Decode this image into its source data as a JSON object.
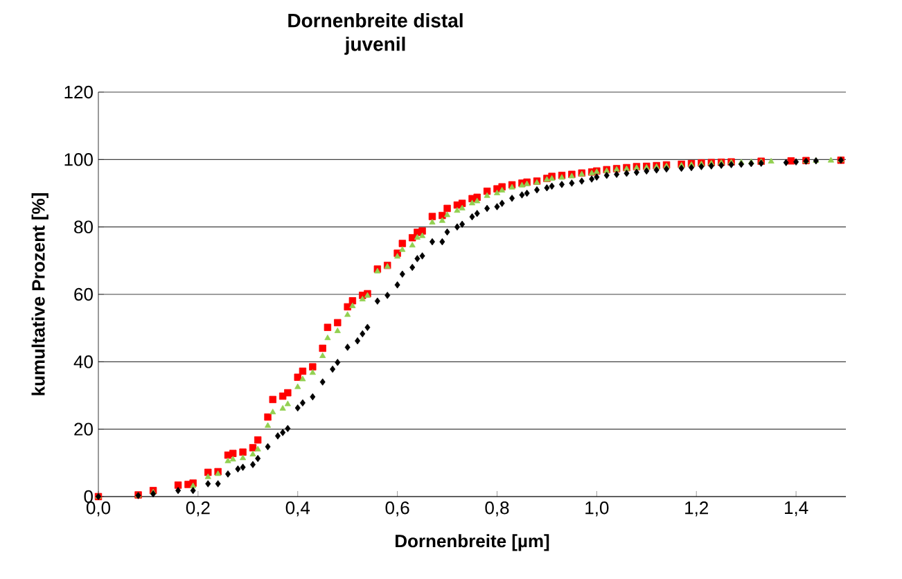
{
  "chart_data": {
    "type": "scatter",
    "title": "Dornenbreite distal",
    "subtitle": "juvenil",
    "xlabel": "Dornenbreite [µm]",
    "ylabel": "kumultative Prozent [%]",
    "xlim": [
      0,
      1.5
    ],
    "ylim": [
      0,
      120
    ],
    "xticks": [
      {
        "value": 0,
        "label": "0,0"
      },
      {
        "value": 0.2,
        "label": "0,2"
      },
      {
        "value": 0.4,
        "label": "0,4"
      },
      {
        "value": 0.6,
        "label": "0,6"
      },
      {
        "value": 0.8,
        "label": "0,8"
      },
      {
        "value": 1.0,
        "label": "1,0"
      },
      {
        "value": 1.2,
        "label": "1,2"
      },
      {
        "value": 1.4,
        "label": "1,4"
      }
    ],
    "yticks": [
      0,
      20,
      40,
      60,
      80,
      100,
      120
    ],
    "grid": "y",
    "series": [
      {
        "color": "#ff0000",
        "marker": "square",
        "x": [
          0,
          0.08,
          0.11,
          0.16,
          0.18,
          0.19,
          0.22,
          0.24,
          0.26,
          0.27,
          0.29,
          0.31,
          0.32,
          0.34,
          0.35,
          0.37,
          0.38,
          0.4,
          0.41,
          0.43,
          0.45,
          0.46,
          0.48,
          0.5,
          0.51,
          0.53,
          0.54,
          0.56,
          0.58,
          0.6,
          0.61,
          0.63,
          0.64,
          0.65,
          0.67,
          0.69,
          0.7,
          0.72,
          0.73,
          0.75,
          0.76,
          0.78,
          0.8,
          0.81,
          0.83,
          0.85,
          0.86,
          0.88,
          0.9,
          0.91,
          0.93,
          0.95,
          0.97,
          0.99,
          1.0,
          1.02,
          1.04,
          1.06,
          1.08,
          1.1,
          1.12,
          1.14,
          1.17,
          1.19,
          1.21,
          1.23,
          1.25,
          1.27,
          1.33,
          1.39,
          1.42,
          1.49
        ],
        "values": [
          0,
          0.5,
          1.8,
          3.4,
          3.6,
          4,
          7.2,
          7.4,
          12.3,
          12.8,
          13.2,
          14.5,
          16.8,
          23.6,
          28.8,
          29.8,
          30.8,
          35.4,
          37.2,
          38.5,
          44,
          50.2,
          51.6,
          56.3,
          58.1,
          59.7,
          60.2,
          67.5,
          68.6,
          72.2,
          75.1,
          76.8,
          78.4,
          78.8,
          83.1,
          83.4,
          85.5,
          86.5,
          87,
          88.4,
          88.8,
          90.6,
          91.3,
          91.9,
          92.5,
          93,
          93.3,
          93.6,
          94.4,
          95,
          95.3,
          95.6,
          96,
          96.3,
          96.6,
          97,
          97.3,
          97.6,
          97.9,
          98,
          98.2,
          98.4,
          98.6,
          98.8,
          99,
          99.1,
          99.2,
          99.3,
          99.5,
          99.6,
          99.7,
          99.8
        ]
      },
      {
        "color": "#92d050",
        "marker": "triangle",
        "x": [
          0,
          0.08,
          0.11,
          0.19,
          0.22,
          0.24,
          0.26,
          0.27,
          0.29,
          0.31,
          0.32,
          0.34,
          0.35,
          0.37,
          0.38,
          0.4,
          0.41,
          0.43,
          0.45,
          0.46,
          0.48,
          0.5,
          0.51,
          0.53,
          0.54,
          0.56,
          0.58,
          0.6,
          0.61,
          0.63,
          0.64,
          0.65,
          0.67,
          0.69,
          0.7,
          0.72,
          0.73,
          0.75,
          0.76,
          0.78,
          0.8,
          0.81,
          0.83,
          0.85,
          0.86,
          0.88,
          0.9,
          0.91,
          0.93,
          0.95,
          0.97,
          0.99,
          1.0,
          1.02,
          1.04,
          1.06,
          1.08,
          1.1,
          1.12,
          1.14,
          1.17,
          1.19,
          1.21,
          1.23,
          1.25,
          1.27,
          1.29,
          1.31,
          1.33,
          1.35,
          1.42,
          1.44,
          1.47,
          1.49
        ],
        "values": [
          0,
          0.3,
          1.2,
          3.1,
          5.8,
          6.7,
          10.5,
          11,
          11.4,
          12.5,
          14,
          21,
          25,
          26.1,
          27.4,
          32.5,
          34.8,
          36.7,
          41.7,
          47,
          49.1,
          53.9,
          56.5,
          58.5,
          59.6,
          66.8,
          68.2,
          71.2,
          73.2,
          74.5,
          76.8,
          77.3,
          81.3,
          81.8,
          83.5,
          84.8,
          85.5,
          87,
          87.6,
          89.2,
          90,
          90.8,
          91.7,
          92.3,
          92.7,
          93.1,
          94,
          94.3,
          94.6,
          95,
          95.6,
          95.9,
          96.3,
          96.6,
          97,
          97.2,
          97.5,
          97.6,
          97.8,
          98,
          98.2,
          98.4,
          98.6,
          98.8,
          99,
          99.1,
          99.1,
          99.2,
          99.3,
          99.4,
          99.5,
          99.6,
          99.7,
          99.8
        ]
      },
      {
        "color": "#000000",
        "marker": "diamond",
        "x": [
          0,
          0.08,
          0.11,
          0.16,
          0.19,
          0.22,
          0.24,
          0.26,
          0.28,
          0.29,
          0.31,
          0.32,
          0.34,
          0.36,
          0.37,
          0.38,
          0.4,
          0.41,
          0.43,
          0.45,
          0.47,
          0.48,
          0.5,
          0.52,
          0.53,
          0.54,
          0.56,
          0.58,
          0.6,
          0.61,
          0.63,
          0.64,
          0.65,
          0.67,
          0.69,
          0.7,
          0.72,
          0.73,
          0.75,
          0.76,
          0.78,
          0.8,
          0.81,
          0.83,
          0.85,
          0.86,
          0.88,
          0.9,
          0.91,
          0.93,
          0.95,
          0.97,
          0.99,
          1.0,
          1.02,
          1.04,
          1.06,
          1.08,
          1.1,
          1.12,
          1.14,
          1.17,
          1.19,
          1.21,
          1.23,
          1.25,
          1.27,
          1.29,
          1.31,
          1.33,
          1.38,
          1.4,
          1.42,
          1.44,
          1.49
        ],
        "values": [
          0,
          0.3,
          0.8,
          1.8,
          1.8,
          3.8,
          3.8,
          6.7,
          8.2,
          8.7,
          9.5,
          11.3,
          14.8,
          18,
          19,
          20.2,
          26.3,
          27.8,
          29.6,
          34,
          37.8,
          39.8,
          44.3,
          46.2,
          48.3,
          50.2,
          58,
          59.7,
          62.8,
          66,
          68,
          70.6,
          71.4,
          75.6,
          75.6,
          78.5,
          80,
          80.8,
          83,
          84,
          85.5,
          86,
          87,
          88.5,
          89.5,
          90,
          91,
          91.6,
          92.1,
          92.6,
          93,
          93.6,
          94.2,
          94.8,
          95.3,
          95.6,
          95.9,
          96.2,
          96.6,
          96.9,
          97.2,
          97.4,
          97.6,
          97.9,
          98.1,
          98.3,
          98.5,
          98.6,
          98.8,
          98.9,
          99.1,
          99.3,
          99.5,
          99.6,
          99.8
        ]
      }
    ]
  }
}
